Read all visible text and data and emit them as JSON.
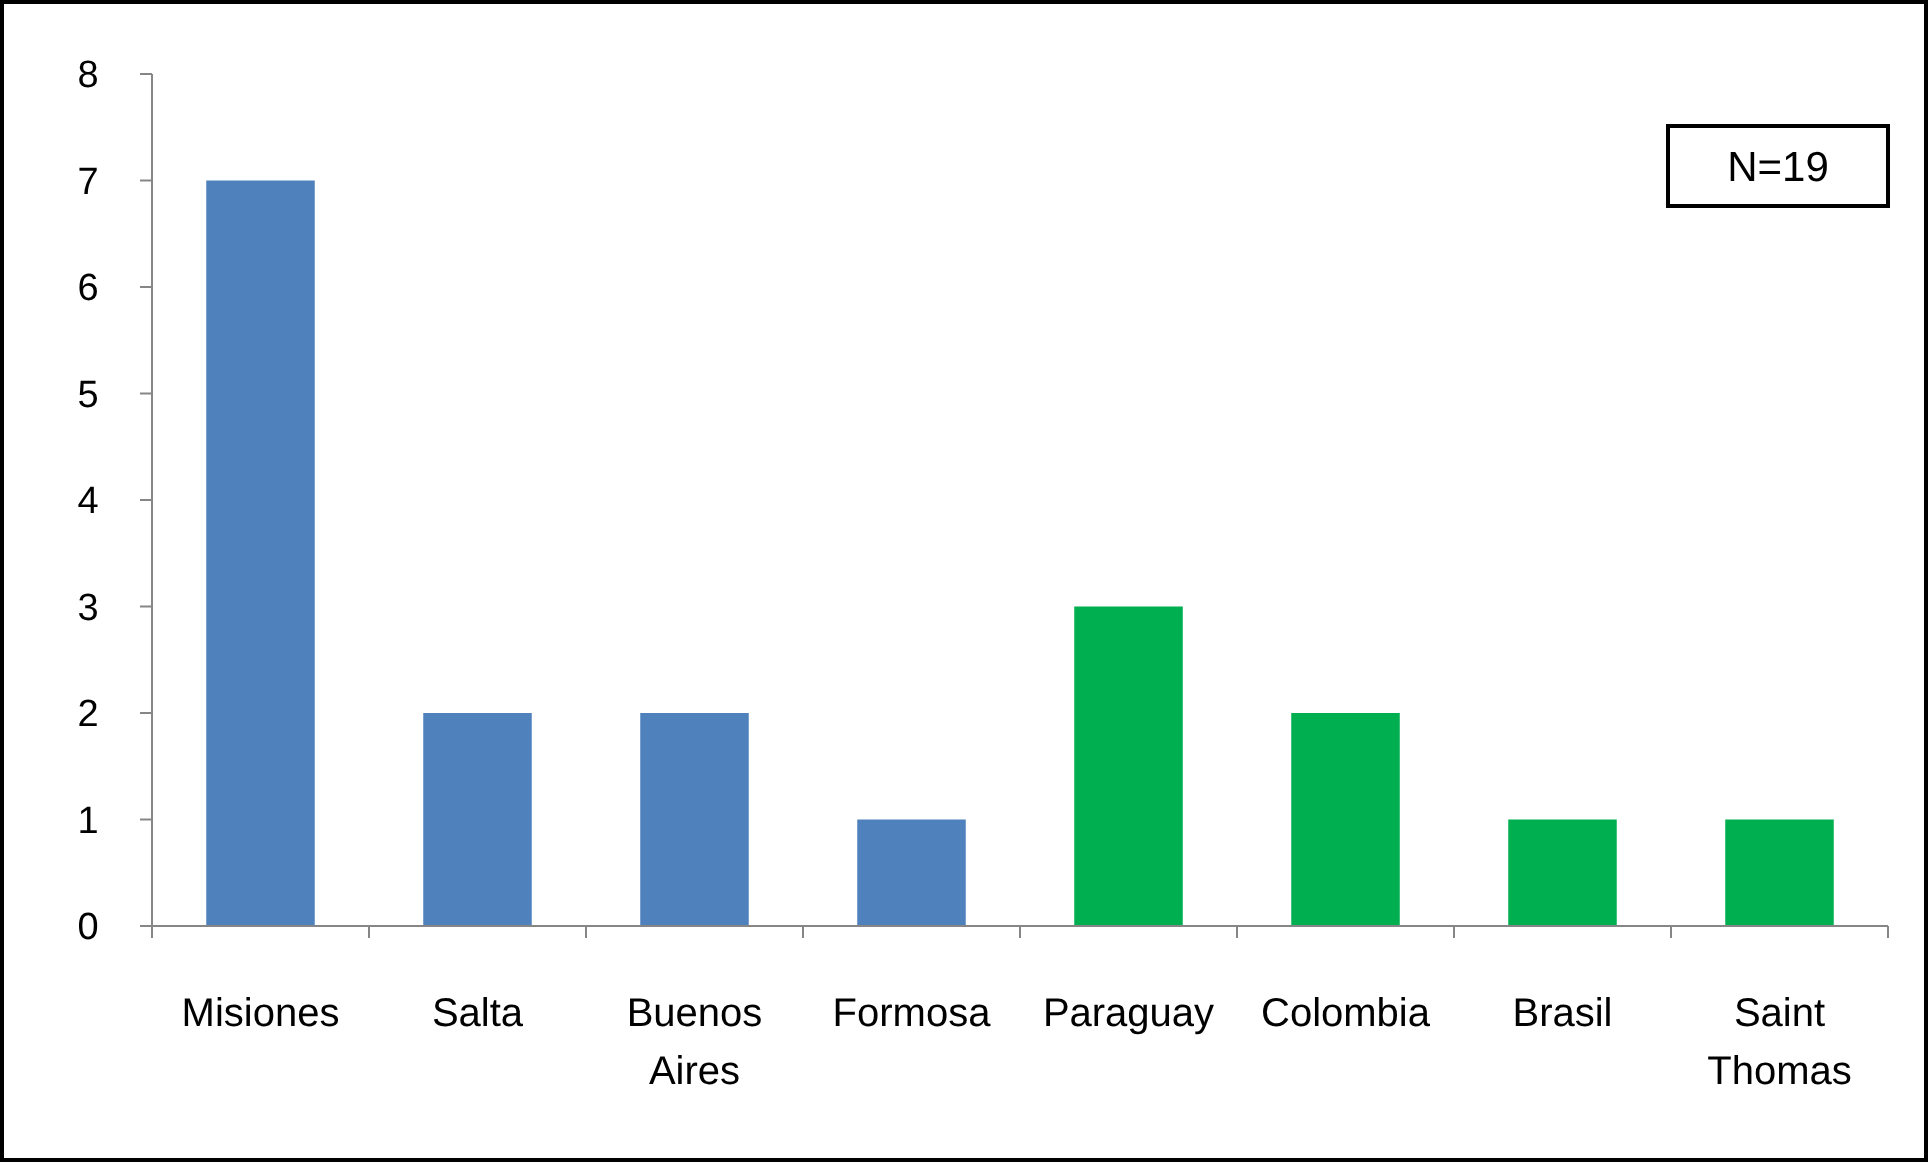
{
  "chart_data": {
    "type": "bar",
    "categories": [
      "Misiones",
      "Salta",
      "Buenos Aires",
      "Formosa",
      "Paraguay",
      "Colombia",
      "Brasil",
      "Saint Thomas"
    ],
    "values": [
      7,
      2,
      2,
      1,
      3,
      2,
      1,
      1
    ],
    "colors": [
      "#4f81bd",
      "#4f81bd",
      "#4f81bd",
      "#4f81bd",
      "#00b050",
      "#00b050",
      "#00b050",
      "#00b050"
    ],
    "ylim": [
      0,
      8
    ],
    "yticks": [
      0,
      1,
      2,
      3,
      4,
      5,
      6,
      7,
      8
    ],
    "grid": false,
    "annotations": [
      "N=19"
    ]
  }
}
